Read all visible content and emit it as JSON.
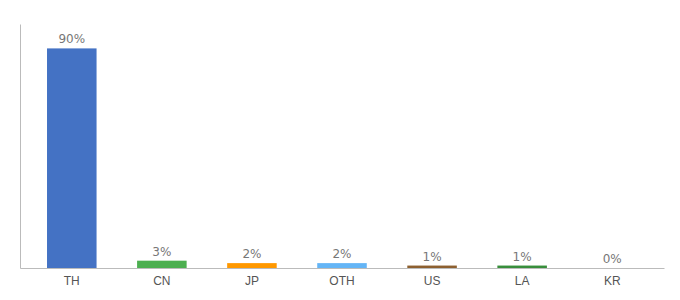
{
  "chart_data": {
    "type": "bar",
    "categories": [
      "TH",
      "CN",
      "JP",
      "OTH",
      "US",
      "LA",
      "KR"
    ],
    "values": [
      90,
      3,
      2,
      2,
      1,
      1,
      0
    ],
    "value_labels": [
      "90%",
      "3%",
      "2%",
      "2%",
      "1%",
      "1%",
      "0%"
    ],
    "colors": [
      "#4472c4",
      "#4caf50",
      "#ff9800",
      "#64b5f6",
      "#8d6030",
      "#388e3c",
      "#aaaaaa"
    ],
    "ylim": [
      0,
      100
    ],
    "data_labels": true,
    "tick_labels": "x"
  }
}
